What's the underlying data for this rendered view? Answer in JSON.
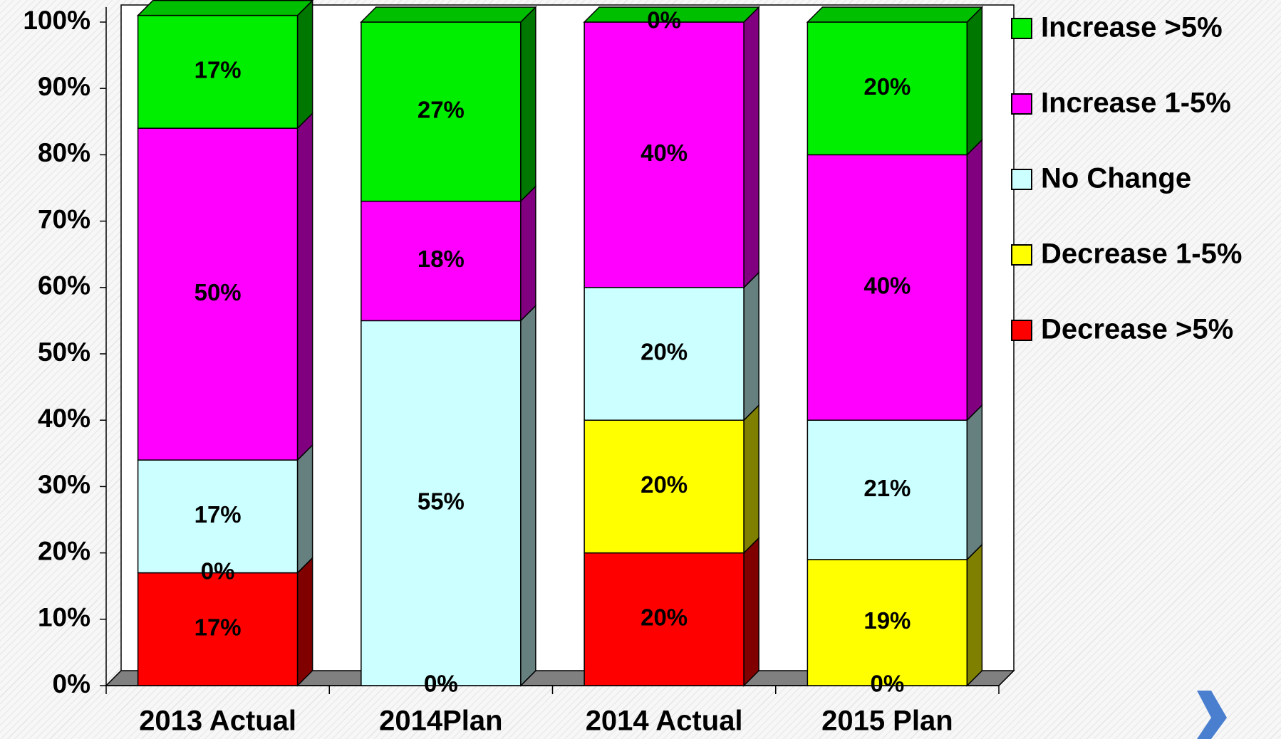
{
  "chart_data": {
    "type": "stacked_bar_3d",
    "categories": [
      "2013 Actual",
      "2014Plan",
      "2014 Actual",
      "2015 Plan"
    ],
    "series": [
      {
        "name": "Decrease >5%",
        "color": "#ff0000",
        "values": [
          17,
          0,
          20,
          0
        ],
        "value_labels": [
          "17%",
          "0%",
          "20%",
          "0%"
        ]
      },
      {
        "name": "Decrease 1-5%",
        "color": "#ffff00",
        "values": [
          0,
          0,
          20,
          19
        ],
        "value_labels": [
          "0%",
          "0%",
          "20%",
          "19%"
        ]
      },
      {
        "name": "No Change",
        "color": "#ccffff",
        "values": [
          17,
          55,
          20,
          21
        ],
        "value_labels": [
          "17%",
          "55%",
          "20%",
          "21%"
        ]
      },
      {
        "name": "Increase 1-5%",
        "color": "#ff00ff",
        "values": [
          50,
          18,
          40,
          40
        ],
        "value_labels": [
          "50%",
          "18%",
          "40%",
          "40%"
        ]
      },
      {
        "name": "Increase >5%",
        "color": "#00ee00",
        "values": [
          17,
          27,
          0,
          20
        ],
        "value_labels": [
          "17%",
          "27%",
          "0%",
          "20%"
        ]
      }
    ],
    "ylim": [
      0,
      100
    ],
    "yticks": [
      {
        "value": 0,
        "label": "0%"
      },
      {
        "value": 10,
        "label": "10%"
      },
      {
        "value": 20,
        "label": "20%"
      },
      {
        "value": 30,
        "label": "30%"
      },
      {
        "value": 40,
        "label": "40%"
      },
      {
        "value": 50,
        "label": "50%"
      },
      {
        "value": 60,
        "label": "60%"
      },
      {
        "value": 70,
        "label": "70%"
      },
      {
        "value": 80,
        "label": "80%"
      },
      {
        "value": 90,
        "label": "90%"
      },
      {
        "value": 100,
        "label": "100%"
      }
    ],
    "legend": "right"
  }
}
